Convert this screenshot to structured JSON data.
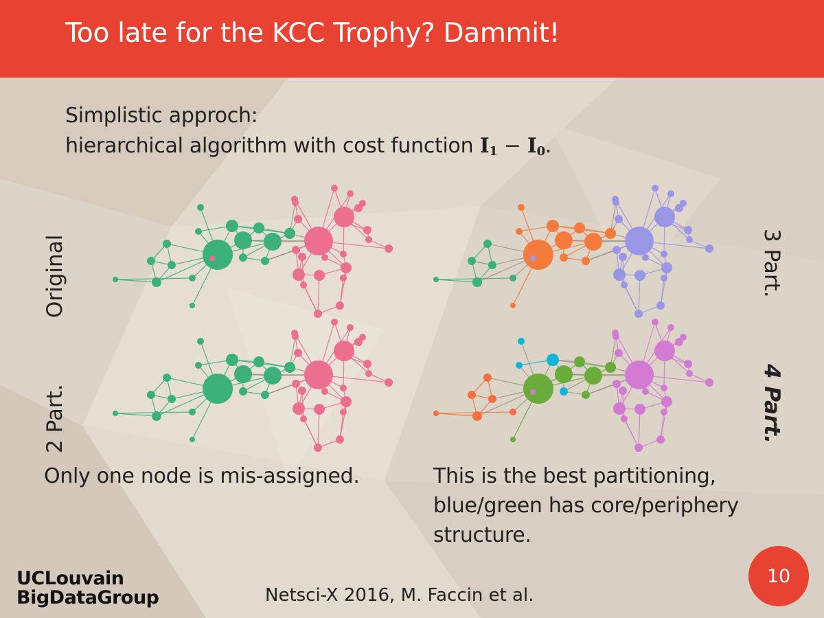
{
  "slide": {
    "title": "Too late for the KCC Trophy? Dammit!",
    "intro_line1": "Simplistic approch:",
    "intro_line2": "hierarchical algorithm with cost function",
    "intro_formula_a": "I",
    "intro_formula_a_sub": "1",
    "intro_formula_op": " − ",
    "intro_formula_b": "I",
    "intro_formula_b_sub": "0",
    "intro_end": ".",
    "label_original": "Original",
    "label_2part": "2 Part.",
    "label_3part": "3 Part.",
    "label_4part": "4 Part.",
    "caption_left": "Only one node is mis-assigned.",
    "caption_right_1": "This is the best partitioning,",
    "caption_right_2": "blue/green has core/periphery",
    "caption_right_3": "structure.",
    "logo_line1": "UCLouvain",
    "logo_line2": "BigDataGroup",
    "footer": "Netsci-X 2016, M. Faccin et al.",
    "page_number": "10"
  },
  "colors": {
    "accent": "#e84233",
    "green": "#3bb07a",
    "pink": "#ec6f8f",
    "orange": "#f47b3c",
    "purple": "#9a96e6",
    "cyan": "#12b5da",
    "lime": "#6aac3c",
    "orange4": "#f47040",
    "magenta": "#d37ad3"
  },
  "networks": [
    {
      "id": "original",
      "groups": [
        0,
        0,
        0,
        0,
        0,
        0,
        0,
        0,
        0,
        0,
        0,
        0,
        0,
        0,
        0,
        0,
        0,
        0,
        1,
        1,
        1,
        1,
        1,
        1,
        1,
        1,
        1,
        1,
        1,
        1,
        1,
        1,
        1,
        1,
        1,
        1,
        1,
        1,
        1,
        1,
        1,
        1,
        1,
        1
      ],
      "palette": [
        "green",
        "pink"
      ]
    },
    {
      "id": "3part",
      "groups": [
        0,
        0,
        0,
        0,
        0,
        0,
        1,
        1,
        1,
        1,
        1,
        1,
        1,
        1,
        1,
        1,
        1,
        1,
        2,
        2,
        2,
        2,
        2,
        2,
        2,
        2,
        2,
        2,
        2,
        2,
        2,
        2,
        2,
        2,
        2,
        2,
        2,
        2,
        2,
        2,
        2,
        2,
        2,
        2
      ],
      "palette": [
        "green",
        "orange",
        "purple"
      ]
    },
    {
      "id": "2part",
      "groups": [
        0,
        0,
        0,
        0,
        0,
        0,
        0,
        0,
        0,
        0,
        0,
        0,
        0,
        0,
        0,
        0,
        0,
        0,
        1,
        1,
        1,
        1,
        1,
        1,
        1,
        1,
        1,
        1,
        1,
        1,
        1,
        1,
        1,
        1,
        1,
        1,
        1,
        1,
        1,
        1,
        1,
        1,
        1,
        0
      ],
      "palette": [
        "green",
        "pink"
      ]
    },
    {
      "id": "4part",
      "groups": [
        0,
        0,
        0,
        0,
        0,
        0,
        1,
        1,
        1,
        2,
        2,
        2,
        1,
        1,
        2,
        1,
        1,
        1,
        3,
        3,
        3,
        3,
        3,
        3,
        3,
        3,
        3,
        3,
        3,
        3,
        3,
        3,
        3,
        3,
        3,
        3,
        3,
        3,
        3,
        3,
        3,
        3,
        3,
        3
      ],
      "palette": [
        "orange4",
        "lime",
        "cyan",
        "magenta"
      ]
    }
  ]
}
